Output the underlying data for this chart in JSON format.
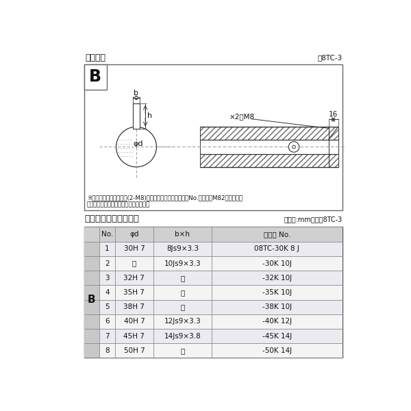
{
  "title_diagram": "軸穴形状",
  "fig_label": "囸8TC-3",
  "table_title": "軸穴形状コード一覧表",
  "table_unit": "（単位:mm）　袆8TC-3",
  "note1": "※セットボルト用タップ(2-M8)が必要な場合は右記コードNo.の末尾にM82を付ける。",
  "note2": "（セットボルトは付属されています。）",
  "dim_label_2m8": "×2－M8",
  "dim_16": "16",
  "header": [
    "No.",
    "φd",
    "b×h",
    "コード No."
  ],
  "col_b_label": "B",
  "rows": [
    [
      "1",
      "30H 7",
      "8Js9×3.3",
      "08TC-30K 8 J"
    ],
    [
      "2",
      "〃",
      "10Js9×3.3",
      "-30K 10J"
    ],
    [
      "3",
      "32H 7",
      "〃",
      "-32K 10J"
    ],
    [
      "4",
      "35H 7",
      "〃",
      "-35K 10J"
    ],
    [
      "5",
      "38H 7",
      "〃",
      "-38K 10J"
    ],
    [
      "6",
      "40H 7",
      "12Js9×3.3",
      "-40K 12J"
    ],
    [
      "7",
      "45H 7",
      "14Js9×3.8",
      "-45K 14J"
    ],
    [
      "8",
      "50H 7",
      "〃",
      "-50K 14J"
    ]
  ]
}
